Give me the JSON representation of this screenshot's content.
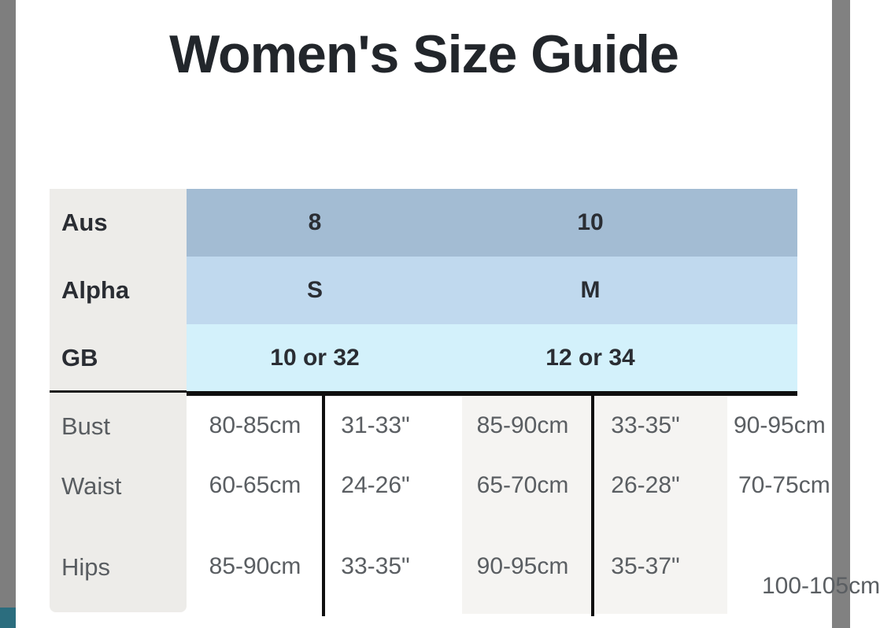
{
  "title": "Women's Size Guide",
  "colors": {
    "accent_teal": "#2b6d7e",
    "edge_bar_gray": "#7e7e7e",
    "band_aus": "#a3bcd3",
    "band_alpha": "#c0d9ee",
    "band_gb": "#d3f1fb",
    "label_column_bg": "#edece9",
    "group2_bg": "#f5f4f2",
    "header_text": "#2a2d33",
    "body_text": "#5a5e62"
  },
  "table": {
    "header_rows": [
      {
        "label": "Aus",
        "values": [
          "8",
          "10"
        ]
      },
      {
        "label": "Alpha",
        "values": [
          "S",
          "M"
        ]
      },
      {
        "label": "GB",
        "values": [
          "10 or 32",
          "12 or 34"
        ]
      }
    ],
    "body_rows": [
      {
        "label": "Bust",
        "values": [
          "80-85cm",
          "31-33\"",
          "85-90cm",
          "33-35\"",
          "90-95cm"
        ]
      },
      {
        "label": "Waist",
        "values": [
          "60-65cm",
          "24-26\"",
          "65-70cm",
          "26-28\"",
          "70-75cm"
        ]
      },
      {
        "label": "Hips",
        "values": [
          "85-90cm",
          "33-35\"",
          "90-95cm",
          "35-37\"",
          "100-105cm"
        ]
      }
    ]
  }
}
